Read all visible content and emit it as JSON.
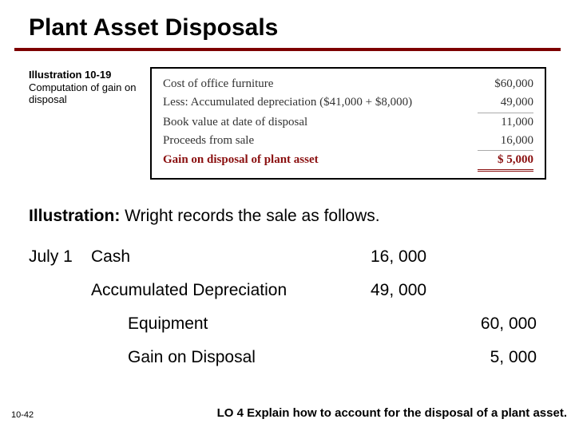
{
  "title": "Plant Asset Disposals",
  "illustration_label": {
    "line1": "Illustration 10-19",
    "line2": "Computation of gain on disposal"
  },
  "computation": {
    "rows": [
      {
        "label": "Cost of office furniture",
        "value": "$60,000"
      },
      {
        "label": "Less: Accumulated depreciation ($41,000 + $8,000)",
        "value": "49,000"
      },
      {
        "label": "Book value at date of disposal",
        "value": "11,000"
      },
      {
        "label": "Proceeds from sale",
        "value": "16,000"
      }
    ],
    "gain_label": "Gain on disposal of plant asset",
    "gain_value": "$  5,000",
    "text_color": "#333333",
    "gain_color": "#8a0f0f",
    "border_color": "#000000",
    "font_family": "serif"
  },
  "journal_intro": {
    "lead": "Illustration:",
    "rest": "  Wright records the sale as follows."
  },
  "journal": {
    "date": "July 1",
    "entries": [
      {
        "account": "Cash",
        "debit": "16, 000",
        "credit": "",
        "indent": false
      },
      {
        "account": "Accumulated Depreciation",
        "debit": "49, 000",
        "credit": "",
        "indent": false
      },
      {
        "account": "Equipment",
        "debit": "",
        "credit": "60, 000",
        "indent": true
      },
      {
        "account": "Gain on Disposal",
        "debit": "",
        "credit": "5, 000",
        "indent": true
      }
    ]
  },
  "footer": {
    "slide_number": "10-42",
    "learning_objective": "LO 4  Explain how to account for the disposal of a plant asset."
  },
  "colors": {
    "title_rule": "#7d0000",
    "background": "#ffffff"
  }
}
